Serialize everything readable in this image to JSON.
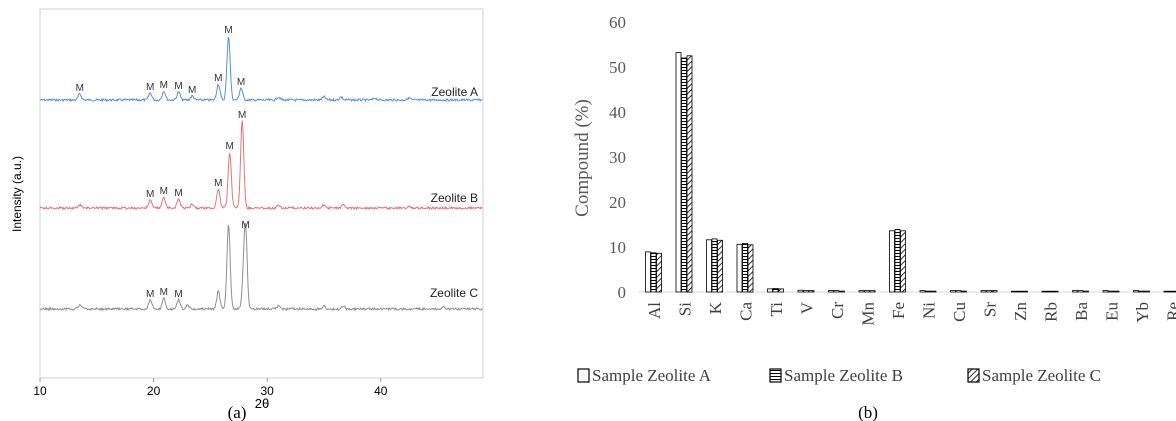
{
  "chart_data": [
    {
      "type": "line",
      "panel_label": "(a)",
      "xlabel": "2θ",
      "ylabel": "Intensity (a.u.)",
      "xlim": [
        10,
        49
      ],
      "xticks": [
        10,
        20,
        30,
        40
      ],
      "peak_marker": "M",
      "series": [
        {
          "name": "Zeolite A",
          "color": "#5b8fd9",
          "baseline": 100,
          "peaks": [
            [
              13.5,
              6
            ],
            [
              19.7,
              7
            ],
            [
              20.9,
              9
            ],
            [
              22.2,
              8
            ],
            [
              23.4,
              4
            ],
            [
              25.7,
              16
            ],
            [
              26.6,
              64
            ],
            [
              27.7,
              12
            ],
            [
              31.0,
              3
            ],
            [
              35.0,
              3
            ],
            [
              36.5,
              3
            ],
            [
              39.5,
              2
            ],
            [
              42.5,
              2
            ]
          ],
          "markers": [
            13.5,
            19.7,
            20.9,
            22.2,
            23.4,
            25.7,
            26.6,
            27.7
          ]
        },
        {
          "name": "Zeolite B",
          "color": "#e4757a",
          "baseline": 208,
          "peaks": [
            [
              13.5,
              3
            ],
            [
              19.7,
              8
            ],
            [
              20.9,
              11
            ],
            [
              22.2,
              9
            ],
            [
              23.4,
              4
            ],
            [
              25.7,
              19
            ],
            [
              26.7,
              56
            ],
            [
              27.8,
              87
            ],
            [
              31.0,
              3
            ],
            [
              35.0,
              3
            ],
            [
              36.7,
              4
            ],
            [
              42.5,
              2
            ]
          ],
          "markers": [
            19.7,
            20.9,
            22.2,
            25.7,
            26.7,
            27.8
          ]
        },
        {
          "name": "Zeolite C",
          "color": "#8f8f8f",
          "baseline": 309,
          "peaks": [
            [
              13.5,
              4
            ],
            [
              19.7,
              9
            ],
            [
              20.9,
              11
            ],
            [
              22.2,
              9
            ],
            [
              23.0,
              4
            ],
            [
              25.7,
              18
            ],
            [
              26.6,
              85
            ],
            [
              27.9,
              22
            ],
            [
              28.1,
              78
            ],
            [
              31.0,
              3
            ],
            [
              35.0,
              3
            ],
            [
              36.7,
              3
            ],
            [
              45.5,
              2
            ]
          ],
          "markers": [
            19.7,
            20.9,
            22.2,
            28.1
          ]
        }
      ]
    },
    {
      "type": "bar",
      "panel_label": "(b)",
      "ylabel": "Compound (%)",
      "ylim": [
        0,
        60
      ],
      "yticks": [
        0,
        10,
        20,
        30,
        40,
        50,
        60
      ],
      "categories": [
        "Al",
        "Si",
        "K",
        "Ca",
        "Ti",
        "V",
        "Cr",
        "Mn",
        "Fe",
        "Ni",
        "Cu",
        "Sr",
        "Zn",
        "Rb",
        "Ba",
        "Eu",
        "Yb",
        "Re"
      ],
      "series": [
        {
          "name": "Sample Zeolite A",
          "pattern": "open",
          "values": [
            8.9,
            53.2,
            11.6,
            10.6,
            0.7,
            0.4,
            0.3,
            0.3,
            13.6,
            0.3,
            0.3,
            0.3,
            0.05,
            0.1,
            0.3,
            0.3,
            0.3,
            0.1
          ]
        },
        {
          "name": "Sample Zeolite B",
          "pattern": "horizontal",
          "values": [
            8.7,
            52.0,
            11.8,
            10.8,
            0.8,
            0.3,
            0.3,
            0.3,
            13.9,
            0.2,
            0.3,
            0.3,
            0.05,
            0.1,
            0.3,
            0.2,
            0.2,
            0.1
          ]
        },
        {
          "name": "Sample Zeolite C",
          "pattern": "diagonal",
          "values": [
            8.6,
            52.5,
            11.5,
            10.5,
            0.7,
            0.3,
            0.2,
            0.3,
            13.6,
            0.2,
            0.2,
            0.3,
            0.05,
            0.1,
            0.2,
            0.2,
            0.2,
            0.1
          ]
        }
      ]
    }
  ]
}
